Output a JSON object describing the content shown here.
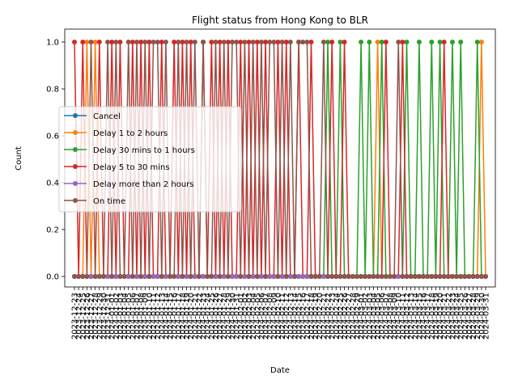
{
  "chart_data": {
    "type": "line",
    "title": "Flight status from Hong Kong to BLR",
    "xlabel": "Date",
    "ylabel": "Count",
    "ylim": [
      0,
      1.05
    ],
    "yticks": [
      "0.0",
      "0.2",
      "0.4",
      "0.6",
      "0.8",
      "1.0"
    ],
    "ytick_values": [
      0,
      0.2,
      0.4,
      0.6,
      0.8,
      1.0
    ],
    "x_start": "2023-12-23",
    "x_end": "2024-03-31",
    "x": [
      "2023-12-23",
      "2023-12-24",
      "2023-12-25",
      "2023-12-26",
      "2023-12-27",
      "2023-12-28",
      "2023-12-29",
      "2023-12-30",
      "2023-12-31",
      "2024-01-01",
      "2024-01-02",
      "2024-01-03",
      "2024-01-04",
      "2024-01-05",
      "2024-01-06",
      "2024-01-07",
      "2024-01-08",
      "2024-01-09",
      "2024-01-10",
      "2024-01-11",
      "2024-01-12",
      "2024-01-13",
      "2024-01-14",
      "2024-01-15",
      "2024-01-16",
      "2024-01-17",
      "2024-01-18",
      "2024-01-19",
      "2024-01-20",
      "2024-01-21",
      "2024-01-22",
      "2024-01-23",
      "2024-01-24",
      "2024-01-25",
      "2024-01-26",
      "2024-01-27",
      "2024-01-28",
      "2024-01-29",
      "2024-01-30",
      "2024-01-31",
      "2024-02-01",
      "2024-02-02",
      "2024-02-03",
      "2024-02-04",
      "2024-02-05",
      "2024-02-06",
      "2024-02-07",
      "2024-02-08",
      "2024-02-09",
      "2024-02-10",
      "2024-02-11",
      "2024-02-12",
      "2024-02-13",
      "2024-02-14",
      "2024-02-15",
      "2024-02-16",
      "2024-02-17",
      "2024-02-18",
      "2024-02-19",
      "2024-02-20",
      "2024-02-21",
      "2024-02-22",
      "2024-02-23",
      "2024-02-24",
      "2024-02-25",
      "2024-02-26",
      "2024-02-27",
      "2024-02-28",
      "2024-02-29",
      "2024-03-01",
      "2024-03-02",
      "2024-03-03",
      "2024-03-04",
      "2024-03-05",
      "2024-03-06",
      "2024-03-07",
      "2024-03-08",
      "2024-03-09",
      "2024-03-10",
      "2024-03-11",
      "2024-03-12",
      "2024-03-13",
      "2024-03-14",
      "2024-03-15",
      "2024-03-16",
      "2024-03-17",
      "2024-03-18",
      "2024-03-19",
      "2024-03-20",
      "2024-03-21",
      "2024-03-22",
      "2024-03-23",
      "2024-03-24",
      "2024-03-25",
      "2024-03-26",
      "2024-03-27",
      "2024-03-28",
      "2024-03-29",
      "2024-03-30",
      "2024-03-31"
    ],
    "legend_position": "center-left",
    "grid": false,
    "series": [
      {
        "name": "Cancel",
        "color": "#1f77b4",
        "values": [
          0,
          0,
          0,
          0,
          0,
          0,
          0,
          0,
          0,
          0,
          0,
          0,
          0,
          0,
          0,
          0,
          0,
          0,
          0,
          0,
          0,
          0,
          0,
          0,
          0,
          0,
          0,
          0,
          0,
          0,
          0,
          0,
          0,
          0,
          0,
          0,
          0,
          0,
          0,
          0,
          0,
          0,
          0,
          0,
          0,
          0,
          0,
          0,
          0,
          0,
          0,
          0,
          0,
          0,
          0,
          0,
          0,
          0,
          0,
          0,
          0,
          0,
          0,
          0,
          0,
          0,
          0,
          0,
          0,
          0,
          0,
          0,
          0,
          0,
          0,
          0,
          0,
          0,
          0,
          0,
          0,
          0,
          0,
          0,
          0,
          0,
          0,
          0,
          0,
          0,
          0,
          0,
          0,
          0,
          0,
          0,
          0,
          0,
          0,
          0
        ]
      },
      {
        "name": "Delay 1 to 2 hours",
        "color": "#ff7f0e",
        "values": [
          0,
          0,
          0,
          1,
          0,
          1,
          0,
          0,
          0,
          0,
          0,
          0,
          0,
          0,
          0,
          0,
          0,
          0,
          0,
          0,
          0,
          0,
          0,
          0,
          0,
          0,
          0,
          0,
          0,
          0,
          0,
          0,
          0,
          0,
          0,
          0,
          0,
          0,
          0,
          0,
          0,
          0,
          0,
          0,
          0,
          0,
          0,
          0,
          0,
          0,
          0,
          0,
          0,
          0,
          0,
          0,
          0,
          0,
          0,
          0,
          0,
          0,
          0,
          0,
          0,
          0,
          0,
          0,
          0,
          0,
          0,
          0,
          0,
          1,
          0,
          0,
          0,
          0,
          0,
          0,
          0,
          0,
          0,
          0,
          0,
          0,
          0,
          0,
          0,
          0,
          0,
          0,
          0,
          0,
          0,
          0,
          0,
          0,
          1,
          0
        ]
      },
      {
        "name": "Delay 30 mins to 1 hours",
        "color": "#2ca02c",
        "values": [
          0,
          0,
          0,
          0,
          0,
          0,
          0,
          0,
          0,
          0,
          0,
          0,
          0,
          0,
          0,
          0,
          0,
          0,
          0,
          0,
          0,
          0,
          0,
          0,
          0,
          0,
          0,
          0,
          0,
          0,
          0,
          0,
          0,
          0,
          0,
          0,
          0,
          0,
          0,
          0,
          0,
          0,
          0,
          0,
          0,
          0,
          0,
          0,
          0,
          0,
          0,
          0,
          0,
          0,
          0,
          0,
          0,
          0,
          0,
          0,
          0,
          1,
          0,
          0,
          1,
          0,
          0,
          0,
          0,
          1,
          0,
          1,
          0,
          0,
          1,
          0,
          0,
          0,
          0,
          0,
          1,
          0,
          0,
          1,
          0,
          0,
          1,
          0,
          1,
          0,
          0,
          1,
          0,
          1,
          0,
          0,
          0,
          1,
          0,
          0
        ]
      },
      {
        "name": "Delay 5 to 30 mins",
        "color": "#d62728",
        "values": [
          1,
          0,
          1,
          0,
          0,
          0,
          1,
          0,
          0,
          1,
          0,
          1,
          0,
          0,
          1,
          0,
          1,
          0,
          1,
          0,
          0,
          1,
          0,
          0,
          1,
          0,
          1,
          0,
          1,
          0,
          0,
          1,
          0,
          1,
          0,
          1,
          0,
          1,
          0,
          0,
          1,
          0,
          1,
          0,
          1,
          0,
          1,
          0,
          0,
          1,
          0,
          1,
          0,
          0,
          1,
          0,
          0,
          1,
          0,
          0,
          0,
          0,
          1,
          0,
          0,
          1,
          0,
          0,
          0,
          0,
          0,
          0,
          0,
          0,
          0,
          1,
          0,
          0,
          0,
          1,
          0,
          0,
          0,
          0,
          0,
          0,
          0,
          0,
          0,
          1,
          0,
          0,
          0,
          0,
          0,
          0,
          0,
          0,
          0,
          0
        ]
      },
      {
        "name": "Delay more than 2 hours",
        "color": "#9467bd",
        "values": [
          0,
          0,
          0,
          0,
          0,
          0,
          0,
          0,
          0,
          0,
          0,
          0,
          0,
          0,
          0,
          0,
          0,
          0,
          0,
          0,
          0,
          0,
          0,
          0,
          0,
          0,
          0,
          0,
          0,
          0,
          0,
          0,
          0,
          0,
          0,
          0,
          0,
          0,
          0,
          0,
          0,
          0,
          0,
          0,
          0,
          0,
          0,
          0,
          0,
          0,
          0,
          0,
          0,
          0,
          0,
          0,
          0,
          0,
          0,
          0,
          0,
          0,
          0,
          0,
          0,
          0,
          0,
          0,
          0,
          0,
          0,
          0,
          0,
          0,
          0,
          0,
          0,
          0,
          0,
          0,
          0,
          0,
          0,
          0,
          0,
          0,
          0,
          0,
          0,
          0,
          0,
          0,
          0,
          0,
          0,
          0,
          0,
          0,
          0,
          0
        ]
      },
      {
        "name": "On time",
        "color": "#8c564b",
        "values": [
          0,
          0,
          0,
          0,
          1,
          0,
          0,
          0,
          1,
          0,
          1,
          0,
          0,
          1,
          0,
          1,
          0,
          1,
          0,
          1,
          1,
          0,
          1,
          0,
          0,
          1,
          0,
          1,
          0,
          1,
          0,
          1,
          0,
          0,
          1,
          0,
          1,
          0,
          1,
          1,
          0,
          1,
          0,
          1,
          0,
          1,
          0,
          1,
          1,
          0,
          1,
          0,
          1,
          0,
          1,
          1,
          1,
          0,
          0,
          0,
          1,
          0,
          0,
          0,
          0,
          0,
          0,
          0,
          0,
          0,
          0,
          0,
          0,
          0,
          0,
          0,
          0,
          0,
          1,
          0,
          0,
          0,
          0,
          0,
          0,
          0,
          0,
          0,
          0,
          0,
          0,
          0,
          0,
          0,
          0,
          0,
          0,
          0,
          0,
          0
        ]
      }
    ]
  }
}
